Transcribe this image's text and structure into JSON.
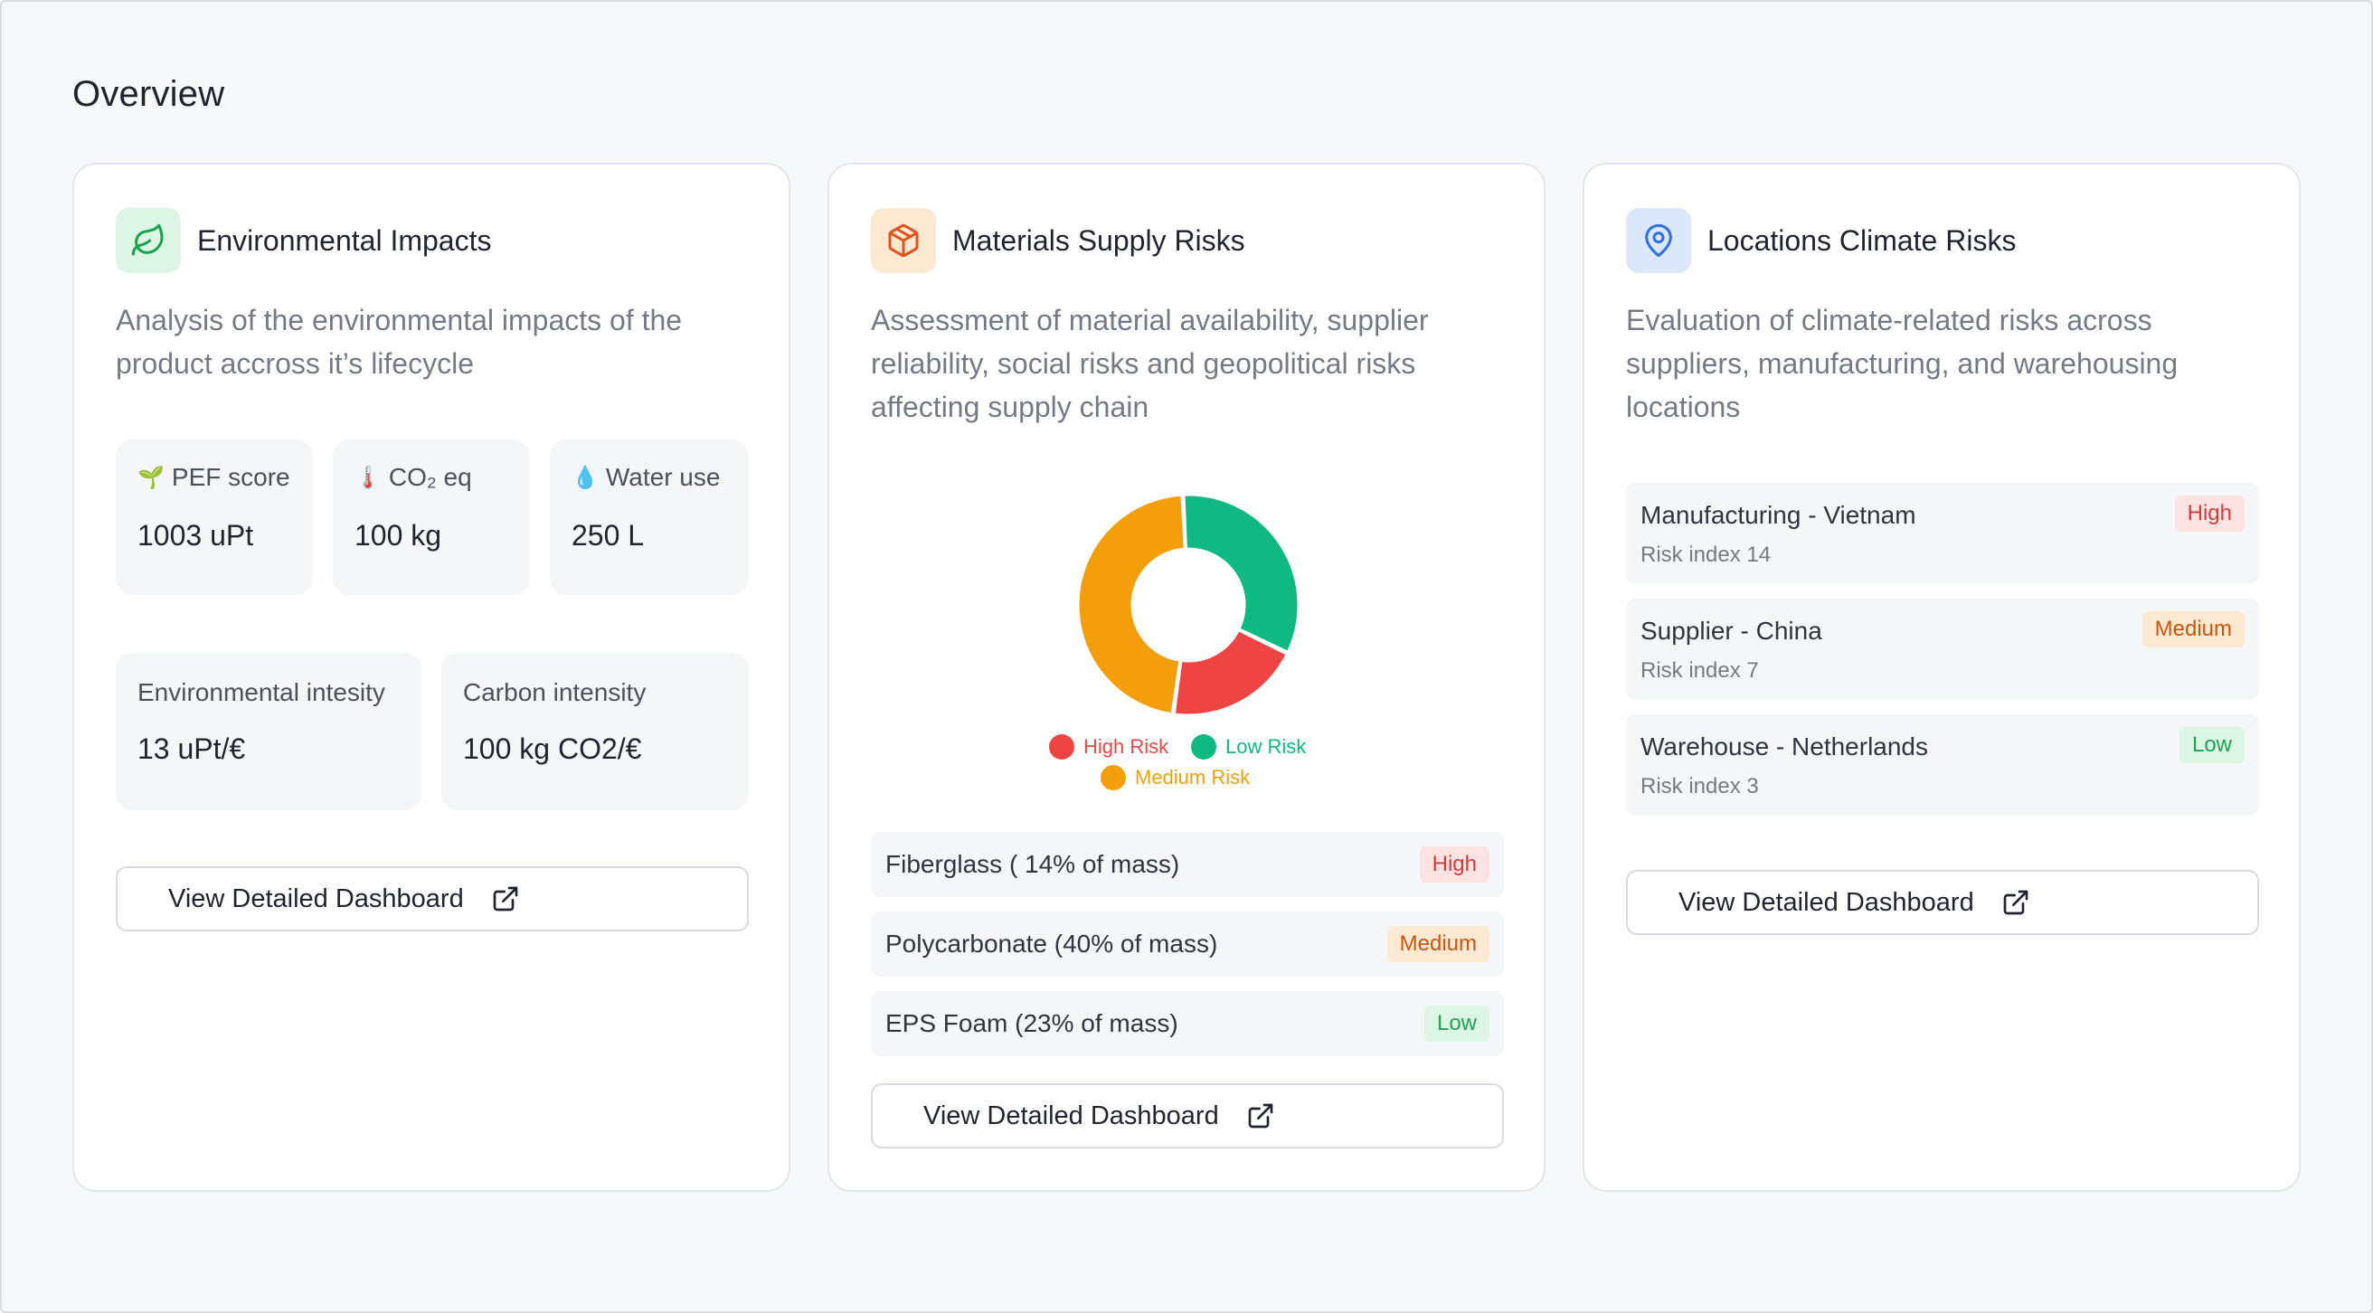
{
  "page": {
    "title": "Overview"
  },
  "environmental": {
    "title": "Environmental Impacts",
    "icon": "leaf-icon",
    "description": "Analysis of the environmental impacts of the product accross it’s lifecycle",
    "metrics": [
      {
        "emoji": "🌱",
        "label": "PEF score",
        "value": "1003 uPt"
      },
      {
        "emoji": "🌡️",
        "label": "CO₂ eq",
        "value": "100 kg"
      },
      {
        "emoji": "💧",
        "label": "Water use",
        "value": "250 L"
      },
      {
        "label": "Environmental intesity",
        "value": "13 uPt/€"
      },
      {
        "label": "Carbon intensity",
        "value": "100 kg CO2/€"
      }
    ],
    "button_label": "View Detailed Dashboard"
  },
  "materials": {
    "title": "Materials Supply Risks",
    "icon": "package-icon",
    "description": "Assessment of material availability, supplier reliability, social risks and geopolitical risks affecting supply chain",
    "chart_data": {
      "type": "pie",
      "donut": true,
      "categories": [
        "High Risk",
        "Low Risk",
        "Medium Risk"
      ],
      "values": [
        20,
        33,
        47
      ],
      "colors": [
        "#ef4444",
        "#10b981",
        "#f59e0b"
      ],
      "legend_placement": "bottom"
    },
    "items": [
      {
        "label": "Fiberglass ( 14% of mass)",
        "risk": "High"
      },
      {
        "label": "Polycarbonate (40% of mass)",
        "risk": "Medium"
      },
      {
        "label": "EPS Foam (23% of mass)",
        "risk": "Low"
      }
    ],
    "button_label": "View Detailed Dashboard"
  },
  "locations": {
    "title": "Locations Climate Risks",
    "icon": "map-pin-icon",
    "description": "Evaluation of climate-related risks across suppliers, manufacturing, and warehousing locations",
    "items": [
      {
        "label": "Manufacturing - Vietnam",
        "sub": "Risk index 14",
        "risk": "High"
      },
      {
        "label": "Supplier - China",
        "sub": "Risk index 7",
        "risk": "Medium"
      },
      {
        "label": "Warehouse - Netherlands",
        "sub": "Risk index 3",
        "risk": "Low"
      }
    ],
    "button_label": "View Detailed Dashboard"
  },
  "colors": {
    "high": "#ef4444",
    "medium": "#f59e0b",
    "low": "#10b981",
    "env_icon_bg": "#dcf5e4",
    "materials_icon_bg": "#fde8d2",
    "locations_icon_bg": "#dbe8fb"
  }
}
